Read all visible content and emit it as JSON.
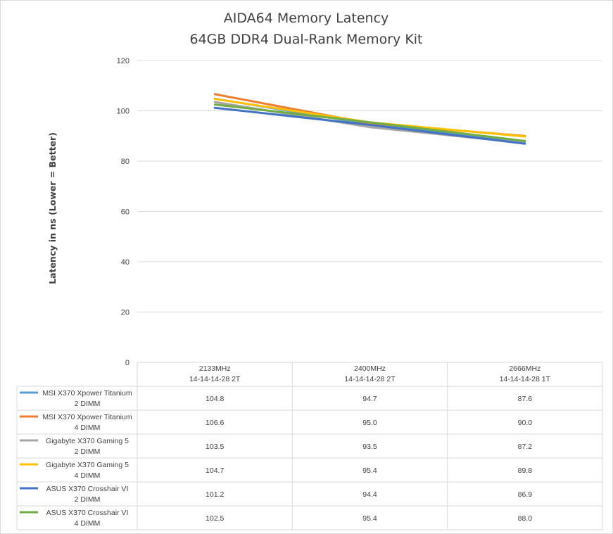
{
  "chart_data": {
    "type": "line",
    "title": [
      "AIDA64 Memory Latency",
      "64GB DDR4 Dual-Rank Memory Kit"
    ],
    "ylabel": "Latency  in ns (Lower = Better)",
    "xlabel": "",
    "ylim": [
      0,
      120
    ],
    "yticks": [
      0,
      20,
      40,
      60,
      80,
      100,
      120
    ],
    "grid": true,
    "legend": "data-table",
    "categories": [
      [
        "2133MHz",
        "14-14-14-28 2T"
      ],
      [
        "2400MHz",
        "14-14-14-28 2T"
      ],
      [
        "2666MHz",
        "14-14-14-28 1T"
      ]
    ],
    "series": [
      {
        "name": [
          "MSI X370 Xpower Titanium",
          "2 DIMM"
        ],
        "color": "#5b9bd5",
        "values": [
          104.8,
          94.7,
          87.6
        ],
        "labels": [
          "104.8",
          "94.7",
          "87.6"
        ]
      },
      {
        "name": [
          "MSI X370 Xpower Titanium",
          "4 DIMM"
        ],
        "color": "#ed7d31",
        "values": [
          106.6,
          95.0,
          90.0
        ],
        "labels": [
          "106.6",
          "95.0",
          "90.0"
        ]
      },
      {
        "name": [
          "Gigabyte X370 Gaming 5",
          "2 DIMM"
        ],
        "color": "#a5a5a5",
        "values": [
          103.5,
          93.5,
          87.2
        ],
        "labels": [
          "103.5",
          "93.5",
          "87.2"
        ]
      },
      {
        "name": [
          "Gigabyte X370 Gaming 5",
          "4 DIMM"
        ],
        "color": "#ffc000",
        "values": [
          104.7,
          95.4,
          89.8
        ],
        "labels": [
          "104.7",
          "95.4",
          "89.8"
        ]
      },
      {
        "name": [
          "ASUS X370 Crosshair VI",
          "2 DIMM"
        ],
        "color": "#4472c4",
        "values": [
          101.2,
          94.4,
          86.9
        ],
        "labels": [
          "101.2",
          "94.4",
          "86.9"
        ]
      },
      {
        "name": [
          "ASUS X370 Crosshair VI",
          "4 DIMM"
        ],
        "color": "#70ad47",
        "values": [
          102.5,
          95.4,
          88.0
        ],
        "labels": [
          "102.5",
          "95.4",
          "88.0"
        ]
      }
    ]
  }
}
